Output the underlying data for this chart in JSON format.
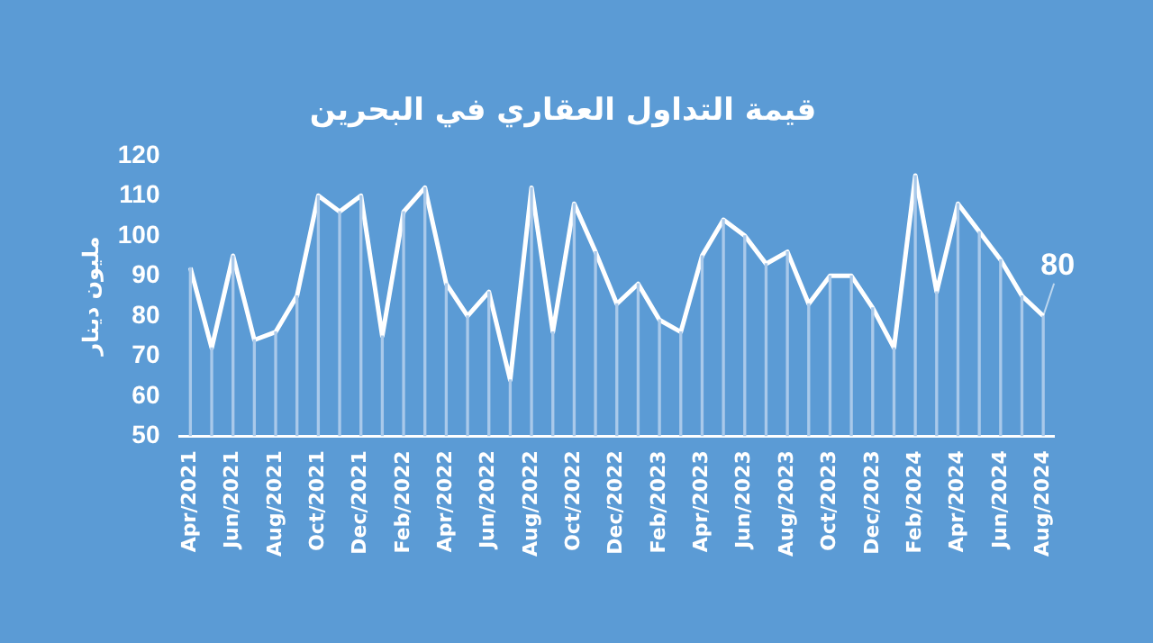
{
  "chart_data": {
    "type": "line",
    "title": "قيمة التداول العقاري في البحرين",
    "ylabel": "مليون دينار",
    "categories": [
      "Apr/2021",
      null,
      "Jun/2021",
      null,
      "Aug/2021",
      null,
      "Oct/2021",
      null,
      "Dec/2021",
      null,
      "Feb/2022",
      null,
      "Apr/2022",
      null,
      "Jun/2022",
      null,
      "Aug/2022",
      null,
      "Oct/2022",
      null,
      "Dec/2022",
      null,
      "Feb/2023",
      null,
      "Apr/2023",
      null,
      "Jun/2023",
      null,
      "Aug/2023",
      null,
      "Oct/2023",
      null,
      "Dec/2023",
      null,
      "Feb/2024",
      null,
      "Apr/2024",
      null,
      "Jun/2024",
      null,
      "Aug/2024"
    ],
    "series": [
      {
        "type": "bar",
        "color": "#a9c9ea",
        "values": [
          92,
          72,
          95,
          74,
          76,
          85,
          110,
          106,
          110,
          75,
          106,
          112,
          88,
          80,
          86,
          64,
          112,
          76,
          108,
          96,
          83,
          88,
          79,
          76,
          95,
          104,
          100,
          93,
          96,
          83,
          90,
          90,
          82,
          72,
          115,
          86,
          108,
          101,
          94,
          85,
          80
        ]
      },
      {
        "color": "#ffffff",
        "values": [
          92,
          72,
          95,
          74,
          76,
          85,
          110,
          106,
          110,
          75,
          106,
          112,
          88,
          80,
          86,
          64,
          112,
          76,
          108,
          96,
          83,
          88,
          79,
          76,
          95,
          104,
          100,
          93,
          96,
          83,
          90,
          90,
          82,
          72,
          115,
          86,
          108,
          101,
          94,
          85,
          80
        ]
      }
    ],
    "ylim": [
      50,
      120
    ],
    "yticks": [
      50,
      60,
      70,
      80,
      90,
      100,
      110,
      120
    ],
    "grid": false,
    "legend": false,
    "marker": "none",
    "line_style": "solid",
    "annotations": [
      {
        "text": "80",
        "x": "Aug/2024",
        "y": 80
      }
    ]
  }
}
